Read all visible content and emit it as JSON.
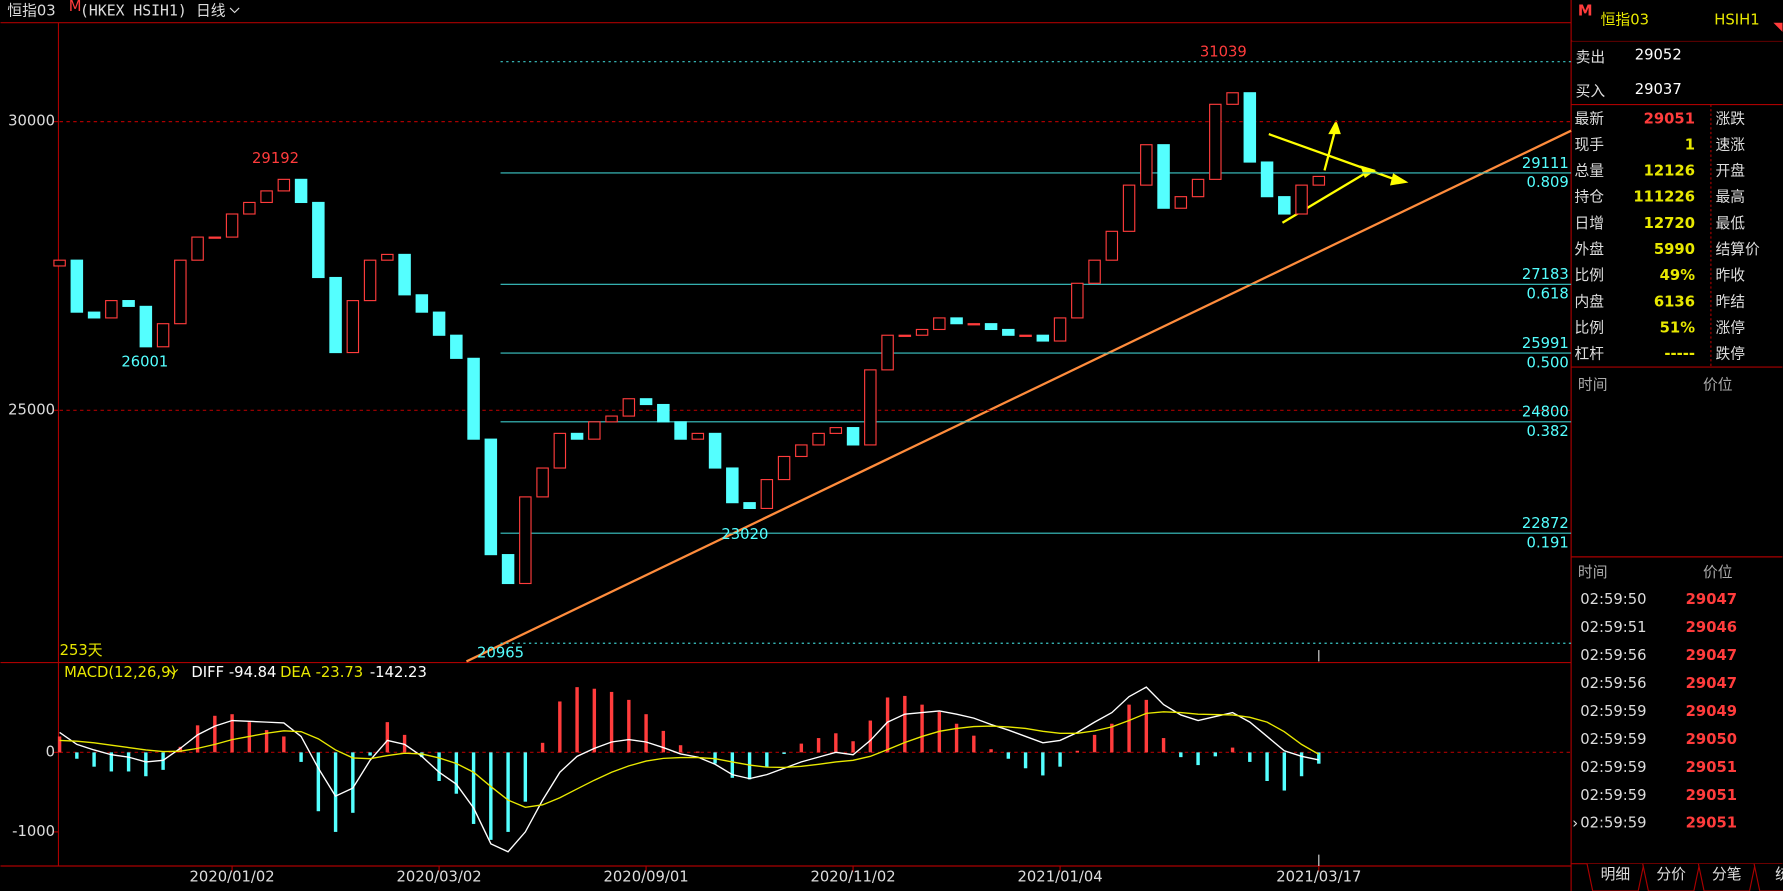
{
  "toolbar": {
    "symbol": "恒指03",
    "flag": "M",
    "code": "(HKEX HSIH1)",
    "period": "日线"
  },
  "chart_data": [
    {
      "type": "candlestick",
      "categories": [
        null,
        null,
        null,
        null,
        null,
        null,
        null,
        null,
        null,
        null,
        "2020/01/02",
        null,
        null,
        null,
        null,
        null,
        null,
        null,
        null,
        null,
        null,
        null,
        "2020/03/02",
        null,
        null,
        null,
        null,
        null,
        null,
        null,
        null,
        null,
        null,
        null,
        "2020/09/01",
        null,
        null,
        null,
        null,
        null,
        null,
        null,
        null,
        null,
        null,
        null,
        "2020/11/02",
        null,
        null,
        null,
        null,
        null,
        null,
        null,
        null,
        null,
        null,
        null,
        "2021/01/04",
        null,
        null,
        null,
        null,
        null,
        null,
        null,
        null,
        null,
        null,
        null,
        null,
        null,
        null,
        "2021/03/17"
      ],
      "open": [
        27500,
        27600,
        26700,
        26600,
        26900,
        26800,
        26100,
        26500,
        27600,
        28000,
        28000,
        28400,
        28600,
        28800,
        29000,
        28600,
        27300,
        26000,
        26900,
        27600,
        27700,
        27000,
        26700,
        26300,
        25900,
        24500,
        22500,
        22000,
        23500,
        24000,
        24600,
        24500,
        24800,
        24900,
        25200,
        25100,
        24800,
        24500,
        24600,
        24000,
        23400,
        23300,
        23800,
        24200,
        24400,
        24600,
        24700,
        24400,
        25700,
        26300,
        26300,
        26400,
        26600,
        26500,
        26500,
        26400,
        26300,
        26300,
        26200,
        26600,
        27200,
        27600,
        28100,
        28900,
        29600,
        28500,
        28700,
        29000,
        30300,
        30500,
        29300,
        28700,
        28400,
        28900
      ],
      "close": [
        27600,
        26700,
        26600,
        26900,
        26800,
        26100,
        26500,
        27600,
        28000,
        28000,
        28400,
        28600,
        28800,
        29000,
        28600,
        27300,
        26000,
        26900,
        27600,
        27700,
        27000,
        26700,
        26300,
        25900,
        24500,
        22500,
        22000,
        23500,
        24000,
        24600,
        24500,
        24800,
        24900,
        25200,
        25100,
        24800,
        24500,
        24600,
        24000,
        23400,
        23300,
        23800,
        24200,
        24400,
        24600,
        24700,
        24400,
        25700,
        26300,
        26300,
        26400,
        26600,
        26500,
        26500,
        26400,
        26300,
        26300,
        26200,
        26600,
        27200,
        27600,
        28100,
        28900,
        29600,
        28500,
        28700,
        29000,
        30300,
        30500,
        29300,
        28700,
        28400,
        28900,
        29051
      ],
      "up_color": "#ff3c3c",
      "down_color": "#54ffff",
      "ylim": [
        20650,
        31713
      ],
      "yticks": [
        25000,
        30000
      ],
      "grid": true,
      "levels": [
        {
          "value": 29111,
          "ratio": "0.809"
        },
        {
          "value": 27183,
          "ratio": "0.618"
        },
        {
          "value": 25991,
          "ratio": "0.500"
        },
        {
          "value": 24800,
          "ratio": "0.382"
        },
        {
          "value": 22872,
          "ratio": "0.191"
        }
      ],
      "extremes": [
        {
          "value": 31039,
          "color": "#ff3c3c",
          "line": true
        },
        {
          "value": 29192,
          "color": "#ff3c3c",
          "line": false
        },
        {
          "value": 26001,
          "color": "#54ffff",
          "line": false
        },
        {
          "value": 23020,
          "color": "#54ffff",
          "line": false
        },
        {
          "value": 20965,
          "color": "#54ffff",
          "line": true
        }
      ],
      "days_label": "253天"
    },
    {
      "type": "macd",
      "title": "MACD(12,26,9)",
      "series": [
        {
          "name": "DIFF",
          "color": "#ffffff",
          "values": [
            250,
            100,
            30,
            -30,
            -60,
            -120,
            -100,
            50,
            220,
            330,
            400,
            390,
            380,
            370,
            200,
            -200,
            -550,
            -450,
            -100,
            150,
            100,
            -50,
            -250,
            -400,
            -700,
            -1150,
            -1250,
            -1000,
            -600,
            -250,
            -50,
            50,
            130,
            160,
            130,
            60,
            -20,
            -60,
            -150,
            -280,
            -330,
            -280,
            -200,
            -120,
            -60,
            0,
            -30,
            150,
            380,
            480,
            500,
            520,
            480,
            430,
            350,
            280,
            200,
            120,
            150,
            250,
            380,
            500,
            700,
            820,
            600,
            470,
            400,
            450,
            500,
            380,
            200,
            20,
            -50,
            -94.84
          ]
        },
        {
          "name": "DEA",
          "color": "#e8e800",
          "values": [
            150,
            140,
            120,
            90,
            60,
            30,
            10,
            15,
            50,
            100,
            160,
            200,
            240,
            270,
            260,
            170,
            30,
            -70,
            -80,
            -40,
            -10,
            -20,
            -70,
            -140,
            -250,
            -430,
            -600,
            -690,
            -660,
            -570,
            -460,
            -350,
            -250,
            -170,
            -110,
            -75,
            -65,
            -65,
            -80,
            -120,
            -160,
            -185,
            -190,
            -175,
            -150,
            -120,
            -100,
            -50,
            35,
            125,
            200,
            265,
            300,
            325,
            330,
            320,
            300,
            265,
            240,
            240,
            270,
            320,
            400,
            490,
            510,
            500,
            480,
            475,
            470,
            440,
            380,
            260,
            100,
            -23.73
          ]
        }
      ],
      "histogram": {
        "up_color": "#ff3c3c",
        "down_color": "#54ffff",
        "values": [
          200,
          -80,
          -180,
          -240,
          -240,
          -300,
          -220,
          70,
          340,
          460,
          480,
          380,
          280,
          200,
          -120,
          -740,
          -1000,
          -760,
          -40,
          380,
          220,
          -60,
          -360,
          -520,
          -900,
          -1100,
          -1000,
          -620,
          120,
          640,
          820,
          800,
          760,
          660,
          480,
          270,
          90,
          10,
          -140,
          -320,
          -340,
          -190,
          -20,
          110,
          180,
          240,
          140,
          400,
          690,
          710,
          600,
          510,
          360,
          210,
          40,
          -80,
          -200,
          -290,
          -180,
          20,
          220,
          360,
          600,
          660,
          180,
          -60,
          -160,
          -50,
          60,
          -120,
          -360,
          -480,
          -300,
          -142.23
        ]
      },
      "ylim": [
        -1400,
        1129
      ],
      "yticks": [
        -1000,
        0
      ],
      "zero_line": true
    }
  ],
  "quote_panel": {
    "corner": "M",
    "title": "恒指03",
    "code": "HSIH1",
    "sell": {
      "label": "卖出",
      "value": 29052
    },
    "buy": {
      "label": "买入",
      "value": 29037
    },
    "rows": [
      [
        "最新",
        29051,
        "涨跌"
      ],
      [
        "现手",
        1,
        "速涨"
      ],
      [
        "总量",
        12126,
        "开盘"
      ],
      [
        "持仓",
        111226,
        "最高"
      ],
      [
        "日增",
        12720,
        "最低"
      ],
      [
        "外盘",
        5990,
        "结算价"
      ],
      [
        "比例",
        "49%",
        "昨收"
      ],
      [
        "内盘",
        6136,
        "昨结"
      ],
      [
        "比例",
        "51%",
        "涨停"
      ],
      [
        "杠杆",
        "-----",
        "跌停"
      ]
    ],
    "header_top": [
      "时间",
      "价位"
    ],
    "header_trades": [
      "时间",
      "价位"
    ],
    "ticks": [
      [
        "02:59:50",
        29047
      ],
      [
        "02:59:51",
        29046
      ],
      [
        "02:59:56",
        29047
      ],
      [
        "02:59:56",
        29047
      ],
      [
        "02:59:59",
        29049
      ],
      [
        "02:59:59",
        29050
      ],
      [
        "02:59:59",
        29051
      ],
      [
        "02:59:59",
        29051
      ],
      [
        "02:59:59",
        29051
      ]
    ],
    "tabs": [
      "明细",
      "分价",
      "分笔",
      "统"
    ]
  }
}
